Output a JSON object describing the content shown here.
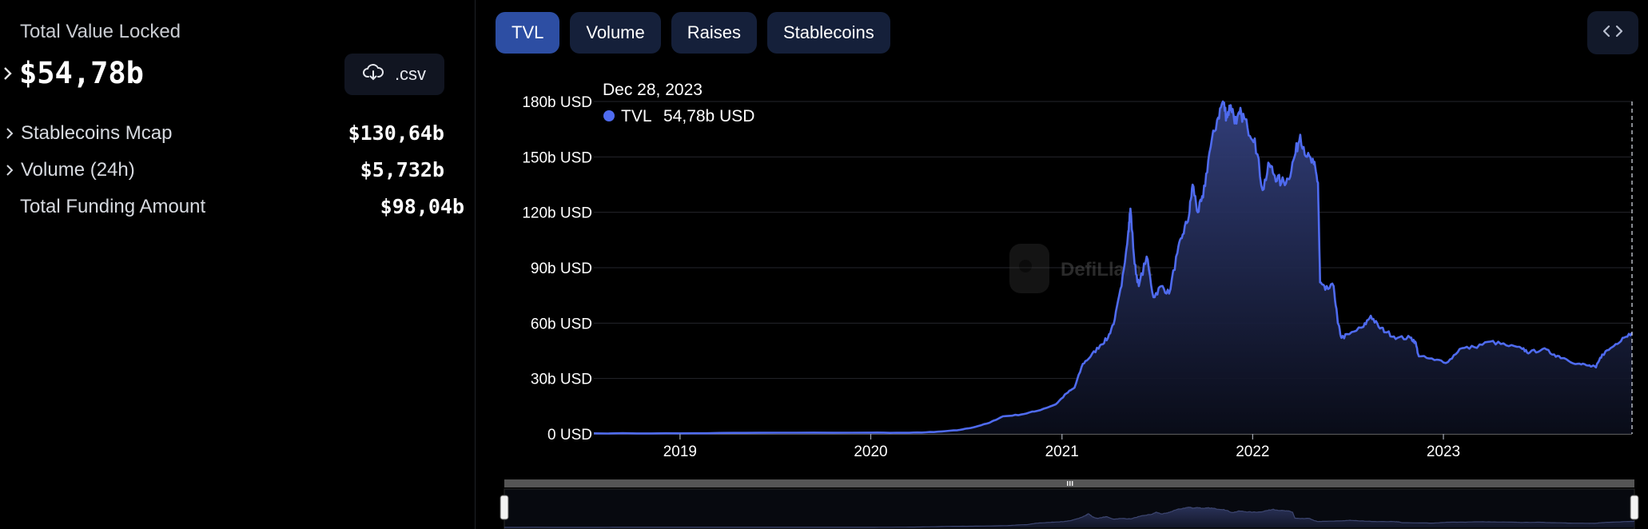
{
  "summary": {
    "tvl_label": "Total Value Locked",
    "tvl_value": "$54,78b",
    "csv_label": ".csv",
    "metrics": [
      {
        "label": "Stablecoins Mcap",
        "value": "$130,64b",
        "expandable": true
      },
      {
        "label": "Volume (24h)",
        "value": "$5,732b",
        "expandable": true
      },
      {
        "label": "Total Funding Amount",
        "value": "$98,04b",
        "expandable": false
      }
    ]
  },
  "tabs": [
    {
      "label": "TVL",
      "active": true
    },
    {
      "label": "Volume",
      "active": false
    },
    {
      "label": "Raises",
      "active": false
    },
    {
      "label": "Stablecoins",
      "active": false
    }
  ],
  "tooltip": {
    "date": "Dec 28, 2023",
    "series": "TVL",
    "value": "54,78b USD"
  },
  "watermark": "DefiLlama",
  "colors": {
    "line": "#4f6bef",
    "tab_active": "#2d4ea3",
    "tab": "#15203a",
    "background": "#000000"
  },
  "chart_data": {
    "type": "area",
    "series_name": "TVL",
    "unit": "USD",
    "ylim": [
      0,
      180
    ],
    "yticks": [
      0,
      30,
      60,
      90,
      120,
      150,
      180
    ],
    "ytick_labels": [
      "0 USD",
      "30b USD",
      "60b USD",
      "90b USD",
      "120b USD",
      "150b USD",
      "180b USD"
    ],
    "xticks": [
      "2019",
      "2020",
      "2021",
      "2022",
      "2023"
    ],
    "xtick_dates": [
      "2019-01-01",
      "2020-01-01",
      "2021-01-01",
      "2022-01-01",
      "2023-01-01"
    ],
    "x_range": [
      "2018-07-20",
      "2023-12-28"
    ],
    "grid": "horizontal",
    "points": [
      [
        "2018-07-20",
        0.3
      ],
      [
        "2019-01-01",
        0.3
      ],
      [
        "2019-06-01",
        0.6
      ],
      [
        "2020-01-01",
        0.7
      ],
      [
        "2020-03-15",
        0.6
      ],
      [
        "2020-05-01",
        1.0
      ],
      [
        "2020-06-15",
        2.0
      ],
      [
        "2020-07-15",
        3.5
      ],
      [
        "2020-08-15",
        6.0
      ],
      [
        "2020-09-10",
        9.5
      ],
      [
        "2020-10-15",
        10.5
      ],
      [
        "2020-11-15",
        12.5
      ],
      [
        "2020-12-20",
        16.0
      ],
      [
        "2021-01-10",
        22
      ],
      [
        "2021-01-25",
        25
      ],
      [
        "2021-02-10",
        38
      ],
      [
        "2021-02-25",
        42
      ],
      [
        "2021-03-15",
        48
      ],
      [
        "2021-03-30",
        52
      ],
      [
        "2021-04-12",
        62
      ],
      [
        "2021-04-25",
        80
      ],
      [
        "2021-05-08",
        110
      ],
      [
        "2021-05-12",
        122
      ],
      [
        "2021-05-20",
        92
      ],
      [
        "2021-05-28",
        80
      ],
      [
        "2021-06-12",
        96
      ],
      [
        "2021-06-25",
        74
      ],
      [
        "2021-07-10",
        80
      ],
      [
        "2021-07-25",
        76
      ],
      [
        "2021-08-10",
        98
      ],
      [
        "2021-08-20",
        108
      ],
      [
        "2021-09-01",
        118
      ],
      [
        "2021-09-08",
        135
      ],
      [
        "2021-09-18",
        120
      ],
      [
        "2021-09-28",
        128
      ],
      [
        "2021-10-10",
        152
      ],
      [
        "2021-10-25",
        170
      ],
      [
        "2021-11-05",
        180
      ],
      [
        "2021-11-12",
        172
      ],
      [
        "2021-11-20",
        178
      ],
      [
        "2021-12-01",
        168
      ],
      [
        "2021-12-10",
        174
      ],
      [
        "2021-12-22",
        166
      ],
      [
        "2022-01-05",
        160
      ],
      [
        "2022-01-20",
        132
      ],
      [
        "2022-02-02",
        146
      ],
      [
        "2022-02-12",
        140
      ],
      [
        "2022-02-25",
        136
      ],
      [
        "2022-03-10",
        138
      ],
      [
        "2022-03-22",
        150
      ],
      [
        "2022-04-02",
        162
      ],
      [
        "2022-04-15",
        150
      ],
      [
        "2022-04-28",
        146
      ],
      [
        "2022-05-06",
        136
      ],
      [
        "2022-05-10",
        82
      ],
      [
        "2022-05-20",
        78
      ],
      [
        "2022-06-05",
        80
      ],
      [
        "2022-06-13",
        60
      ],
      [
        "2022-06-20",
        52
      ],
      [
        "2022-07-05",
        54
      ],
      [
        "2022-08-01",
        58
      ],
      [
        "2022-08-15",
        64
      ],
      [
        "2022-08-30",
        58
      ],
      [
        "2022-09-15",
        55
      ],
      [
        "2022-10-05",
        52
      ],
      [
        "2022-10-30",
        52
      ],
      [
        "2022-11-08",
        50
      ],
      [
        "2022-11-15",
        42
      ],
      [
        "2022-12-15",
        40
      ],
      [
        "2023-01-10",
        39
      ],
      [
        "2023-02-01",
        46
      ],
      [
        "2023-03-01",
        47
      ],
      [
        "2023-04-01",
        50
      ],
      [
        "2023-05-01",
        48
      ],
      [
        "2023-06-01",
        46
      ],
      [
        "2023-06-15",
        44
      ],
      [
        "2023-07-10",
        46
      ],
      [
        "2023-08-01",
        43
      ],
      [
        "2023-08-20",
        41
      ],
      [
        "2023-09-15",
        38
      ],
      [
        "2023-10-05",
        37
      ],
      [
        "2023-10-20",
        36
      ],
      [
        "2023-11-01",
        43
      ],
      [
        "2023-11-20",
        47
      ],
      [
        "2023-12-10",
        52
      ],
      [
        "2023-12-28",
        54.78
      ]
    ]
  }
}
